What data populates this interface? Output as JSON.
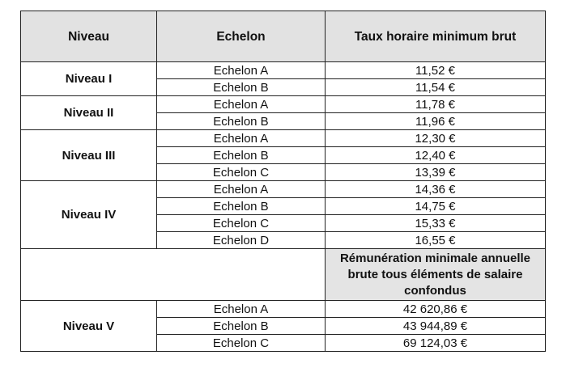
{
  "headers": {
    "niveau": "Niveau",
    "echelon": "Echelon",
    "taux": "Taux horaire minimum brut"
  },
  "groups": [
    {
      "niveau": "Niveau I",
      "rows": [
        {
          "echelon": "Echelon A",
          "value": "11,52 €"
        },
        {
          "echelon": "Echelon B",
          "value": "11,54 €"
        }
      ]
    },
    {
      "niveau": "Niveau II",
      "rows": [
        {
          "echelon": "Echelon A",
          "value": "11,78 €"
        },
        {
          "echelon": "Echelon B",
          "value": "11,96 €"
        }
      ]
    },
    {
      "niveau": "Niveau III",
      "rows": [
        {
          "echelon": "Echelon A",
          "value": "12,30 €"
        },
        {
          "echelon": "Echelon B",
          "value": "12,40 €"
        },
        {
          "echelon": "Echelon C",
          "value": "13,39 €"
        }
      ]
    },
    {
      "niveau": "Niveau IV",
      "rows": [
        {
          "echelon": "Echelon A",
          "value": "14,36 €"
        },
        {
          "echelon": "Echelon B",
          "value": "14,75 €"
        },
        {
          "echelon": "Echelon C",
          "value": "15,33 €"
        },
        {
          "echelon": "Echelon D",
          "value": "16,55 €"
        }
      ]
    }
  ],
  "subheader": "Rémunération minimale annuelle brute tous éléments de salaire confondus",
  "niveau_v": {
    "niveau": "Niveau V",
    "rows": [
      {
        "echelon": "Echelon A",
        "value": "42 620,86 €"
      },
      {
        "echelon": "Echelon B",
        "value": "43 944,89 €"
      },
      {
        "echelon": "Echelon C",
        "value": "69 124,03 €"
      }
    ]
  }
}
